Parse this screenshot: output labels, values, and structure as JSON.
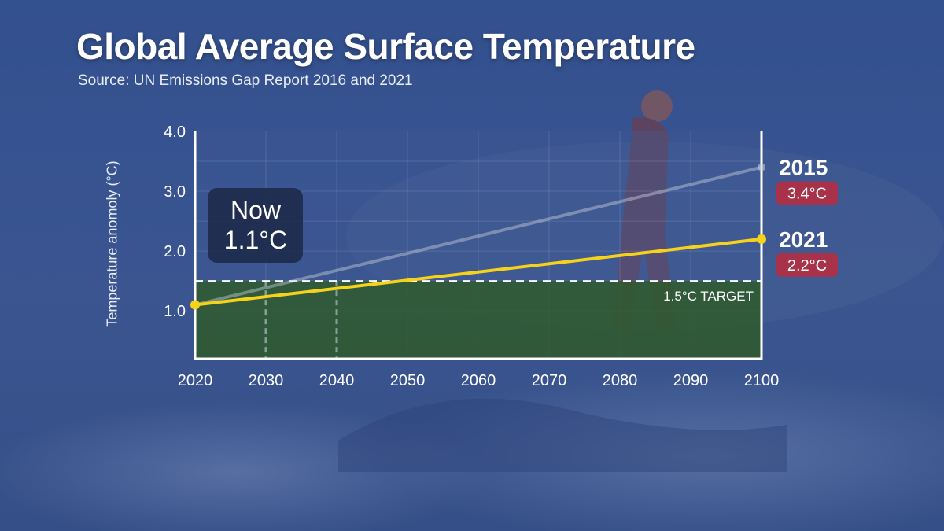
{
  "header": {
    "title": "Global Average Surface Temperature",
    "source": "Source: UN Emissions Gap Report 2016 and 2021"
  },
  "colors": {
    "background": "#3a5592",
    "target_fill": "#2f5a2c",
    "line_2021": "#f7d21b",
    "line_2015": "#c9cfd9",
    "badge": "#a8324a",
    "callout": "#1e2b4c"
  },
  "callout": {
    "line1": "Now",
    "line2": "1.1°C",
    "value": 1.1
  },
  "chart_data": {
    "type": "line",
    "title": "Global Average Surface Temperature",
    "ylabel": "Temperature anomoly (°C)",
    "xlabel": "",
    "xlim": [
      2020,
      2100
    ],
    "ylim": [
      0.2,
      4.0
    ],
    "x_ticks": [
      "2020",
      "2030",
      "2040",
      "2050",
      "2060",
      "2070",
      "2080",
      "2090",
      "2100"
    ],
    "y_ticks": [
      "1.0",
      "2.0",
      "3.0",
      "4.0"
    ],
    "grid": true,
    "series": [
      {
        "name": "2015",
        "x": [
          2020,
          2100
        ],
        "y": [
          1.1,
          3.4
        ],
        "end_label": "2015",
        "end_value_label": "3.4°C"
      },
      {
        "name": "2021",
        "x": [
          2020,
          2100
        ],
        "y": [
          1.1,
          2.2
        ],
        "end_label": "2021",
        "end_value_label": "2.2°C"
      }
    ],
    "target": {
      "value": 1.5,
      "label": "1.5°C TARGET"
    },
    "markers_x": [
      2030,
      2040
    ]
  }
}
